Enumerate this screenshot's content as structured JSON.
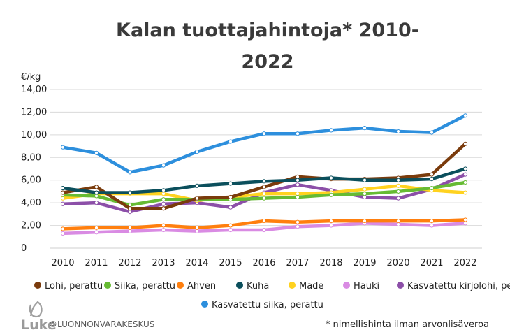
{
  "chart_data": {
    "type": "line",
    "title_line1": "Kalan tuottajahintoja* 2010-",
    "title_line2": "2022",
    "ylabel": "€/kg",
    "ylim": [
      0,
      14
    ],
    "y_ticks": [
      "0",
      "2,00",
      "4,00",
      "6,00",
      "8,00",
      "10,00",
      "12,00",
      "14,00"
    ],
    "y_tick_values": [
      0,
      2,
      4,
      6,
      8,
      10,
      12,
      14
    ],
    "categories": [
      "2010",
      "2011",
      "2012",
      "2013",
      "2014",
      "2015",
      "2016",
      "2017",
      "2018",
      "2019",
      "2020",
      "2021",
      "2022"
    ],
    "grid": true,
    "legend_position": "bottom",
    "series": [
      {
        "name": "Lohi, perattu",
        "color": "#7a3b0c",
        "values": [
          4.9,
          5.4,
          3.5,
          3.5,
          4.4,
          4.5,
          5.4,
          6.3,
          6.1,
          6.1,
          6.2,
          6.5,
          9.2
        ]
      },
      {
        "name": "Siika, perattu",
        "color": "#66bb33",
        "values": [
          4.7,
          4.6,
          3.8,
          4.3,
          4.3,
          4.3,
          4.4,
          4.5,
          4.7,
          4.8,
          5.0,
          5.3,
          5.8
        ]
      },
      {
        "name": "Ahven",
        "color": "#ff7f0e",
        "values": [
          1.7,
          1.8,
          1.8,
          2.0,
          1.8,
          2.0,
          2.4,
          2.3,
          2.4,
          2.4,
          2.4,
          2.4,
          2.5
        ]
      },
      {
        "name": "Kuha",
        "color": "#0b4f5c",
        "values": [
          5.3,
          4.9,
          4.9,
          5.1,
          5.5,
          5.7,
          5.9,
          6.0,
          6.2,
          6.0,
          6.0,
          6.1,
          7.0
        ]
      },
      {
        "name": "Made",
        "color": "#ffd21f",
        "values": [
          4.4,
          4.8,
          4.8,
          4.8,
          4.2,
          4.5,
          4.8,
          4.8,
          4.9,
          5.2,
          5.5,
          5.1,
          4.9
        ]
      },
      {
        "name": "Hauki",
        "color": "#d98be3",
        "values": [
          1.3,
          1.4,
          1.5,
          1.6,
          1.5,
          1.6,
          1.6,
          1.9,
          2.0,
          2.2,
          2.1,
          2.0,
          2.2
        ]
      },
      {
        "name": "Kasvatettu kirjolohi, perattu",
        "color": "#8c4fa8",
        "values": [
          3.9,
          4.0,
          3.2,
          3.9,
          4.0,
          3.6,
          4.9,
          5.6,
          5.1,
          4.5,
          4.4,
          5.2,
          6.5
        ]
      },
      {
        "name": "Kasvatettu siika, perattu",
        "color": "#2d8fdd",
        "values": [
          8.9,
          8.4,
          6.7,
          7.3,
          8.5,
          9.4,
          10.1,
          10.1,
          10.4,
          10.6,
          10.3,
          10.2,
          11.7
        ]
      }
    ]
  },
  "footer": {
    "logo": "Luke",
    "copyright": "©LUONNONVARAKESKUS",
    "note": "* nimellishinta ilman arvonlisäveroa"
  }
}
